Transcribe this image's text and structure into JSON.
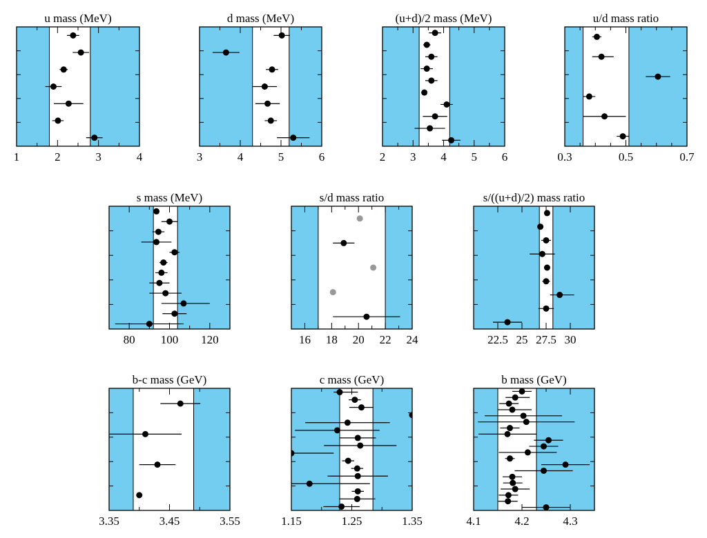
{
  "figure_title": "",
  "colors": {
    "excluded_band": "#72cdf0",
    "allowed_band": "#ffffff",
    "marker_primary": "#000000",
    "marker_secondary": "#999999",
    "frame": "#000000"
  },
  "chart_data": [
    {
      "type": "scatter",
      "title": "u mass (MeV)",
      "xlim": [
        1,
        4
      ],
      "xticks": [
        1,
        2,
        3,
        4
      ],
      "minor_step": 0.5,
      "band": [
        1.8,
        2.8
      ],
      "points": [
        {
          "value": 2.38,
          "err_lo": 0.15,
          "err_hi": 0.15
        },
        {
          "value": 2.57,
          "err_lo": 0.2,
          "err_hi": 0.2
        },
        {
          "value": 2.15,
          "err_lo": 0.1,
          "err_hi": 0.1
        },
        {
          "value": 1.9,
          "err_lo": 0.2,
          "err_hi": 0.2
        },
        {
          "value": 2.27,
          "err_lo": 0.36,
          "err_hi": 0.36
        },
        {
          "value": 2.01,
          "err_lo": 0.14,
          "err_hi": 0.14
        },
        {
          "value": 2.9,
          "err_lo": 0.2,
          "err_hi": 0.2
        }
      ]
    },
    {
      "type": "scatter",
      "title": "d mass (MeV)",
      "xlim": [
        3,
        6
      ],
      "xticks": [
        3,
        4,
        5,
        6
      ],
      "minor_step": 0.5,
      "band": [
        4.3,
        5.2
      ],
      "points": [
        {
          "value": 5.02,
          "err_lo": 0.2,
          "err_hi": 0.2
        },
        {
          "value": 3.65,
          "err_lo": 0.33,
          "err_hi": 0.33
        },
        {
          "value": 4.78,
          "err_lo": 0.15,
          "err_hi": 0.15
        },
        {
          "value": 4.6,
          "err_lo": 0.3,
          "err_hi": 0.3
        },
        {
          "value": 4.67,
          "err_lo": 0.3,
          "err_hi": 0.3
        },
        {
          "value": 4.75,
          "err_lo": 0.15,
          "err_hi": 0.15
        },
        {
          "value": 5.3,
          "err_lo": 0.4,
          "err_hi": 0.4
        }
      ]
    },
    {
      "type": "scatter",
      "title": "(u+d)/2 mass (MeV)",
      "xlim": [
        2,
        6
      ],
      "xticks": [
        2,
        3,
        4,
        5,
        6
      ],
      "minor_step": 0.5,
      "band": [
        3.2,
        4.2
      ],
      "points": [
        {
          "value": 3.72,
          "err_lo": 0.2,
          "err_hi": 0.2
        },
        {
          "value": 3.45,
          "err_lo": 0.12,
          "err_hi": 0.12
        },
        {
          "value": 3.6,
          "err_lo": 0.2,
          "err_hi": 0.2
        },
        {
          "value": 3.45,
          "err_lo": 0.2,
          "err_hi": 0.2
        },
        {
          "value": 3.6,
          "err_lo": 0.2,
          "err_hi": 0.2
        },
        {
          "value": 3.37,
          "err_lo": 0.0,
          "err_hi": 0.0
        },
        {
          "value": 4.1,
          "err_lo": 0.2,
          "err_hi": 0.2
        },
        {
          "value": 3.72,
          "err_lo": 0.4,
          "err_hi": 0.4
        },
        {
          "value": 3.55,
          "err_lo": 0.5,
          "err_hi": 0.5
        },
        {
          "value": 4.25,
          "err_lo": 0.3,
          "err_hi": 0.3
        }
      ]
    },
    {
      "type": "scatter",
      "title": "u/d mass ratio",
      "xlim": [
        0.3,
        0.7
      ],
      "xticks": [
        "0.3",
        "0.5",
        "0.7"
      ],
      "xtick_values": [
        0.3,
        0.5,
        0.7
      ],
      "minor_step": 0.05,
      "band": [
        0.36,
        0.51
      ],
      "points": [
        {
          "value": 0.405,
          "err_lo": 0.015,
          "err_hi": 0.015
        },
        {
          "value": 0.42,
          "err_lo": 0.03,
          "err_hi": 0.04
        },
        {
          "value": 0.605,
          "err_lo": 0.04,
          "err_hi": 0.04
        },
        {
          "value": 0.38,
          "err_lo": 0.02,
          "err_hi": 0.02
        },
        {
          "value": 0.43,
          "err_lo": 0.07,
          "err_hi": 0.07
        },
        {
          "value": 0.49,
          "err_lo": 0.02,
          "err_hi": 0.02
        }
      ]
    },
    {
      "type": "scatter",
      "title": "s mass (MeV)",
      "xlim": [
        70,
        130
      ],
      "xticks": [
        80,
        100,
        120
      ],
      "minor_step": 10,
      "band": [
        92,
        104
      ],
      "points": [
        {
          "value": 93.5,
          "err_lo": 1.5,
          "err_hi": 1.5
        },
        {
          "value": 100,
          "err_lo": 4,
          "err_hi": 4
        },
        {
          "value": 94.5,
          "err_lo": 3,
          "err_hi": 3
        },
        {
          "value": 93.5,
          "err_lo": 7.5,
          "err_hi": 7.5
        },
        {
          "value": 102.5,
          "err_lo": 2.5,
          "err_hi": 2.5
        },
        {
          "value": 97,
          "err_lo": 2,
          "err_hi": 2
        },
        {
          "value": 96,
          "err_lo": 3,
          "err_hi": 3
        },
        {
          "value": 95,
          "err_lo": 5,
          "err_hi": 5
        },
        {
          "value": 98,
          "err_lo": 8,
          "err_hi": 8
        },
        {
          "value": 107,
          "err_lo": 11,
          "err_hi": 13
        },
        {
          "value": 102.5,
          "err_lo": 6,
          "err_hi": 6
        },
        {
          "value": 90,
          "err_lo": 17,
          "err_hi": 17
        }
      ]
    },
    {
      "type": "scatter",
      "title": "s/d mass ratio",
      "xlim": [
        15,
        24
      ],
      "xticks": [
        16,
        18,
        20,
        22,
        24
      ],
      "minor_step": 1,
      "band": [
        17,
        22
      ],
      "points": [
        {
          "value": 20.1,
          "err_lo": 0,
          "err_hi": 0,
          "muted": true
        },
        {
          "value": 18.9,
          "err_lo": 0.8,
          "err_hi": 0.8
        },
        {
          "value": 21.1,
          "err_lo": 0,
          "err_hi": 0,
          "muted": true
        },
        {
          "value": 18.1,
          "err_lo": 0,
          "err_hi": 0,
          "muted": true
        },
        {
          "value": 20.6,
          "err_lo": 2.5,
          "err_hi": 2.5
        }
      ]
    },
    {
      "type": "scatter",
      "title": "s/((u+d)/2) mass ratio",
      "xlim": [
        20,
        32.5
      ],
      "xticks": [
        "22.5",
        "25",
        "27.5",
        "30"
      ],
      "xtick_values": [
        22.5,
        25,
        27.5,
        30
      ],
      "minor_step": 2.5,
      "band": [
        26.8,
        28.2
      ],
      "points": [
        {
          "value": 27.6,
          "err_lo": 0.2,
          "err_hi": 0.2
        },
        {
          "value": 26.9,
          "err_lo": 0.2,
          "err_hi": 0.2
        },
        {
          "value": 27.5,
          "err_lo": 0.5,
          "err_hi": 0.5
        },
        {
          "value": 27.1,
          "err_lo": 1.3,
          "err_hi": 1.3
        },
        {
          "value": 27.6,
          "err_lo": 0.3,
          "err_hi": 0.3
        },
        {
          "value": 27.5,
          "err_lo": 0.4,
          "err_hi": 0.4
        },
        {
          "value": 28.9,
          "err_lo": 1.0,
          "err_hi": 1.5
        },
        {
          "value": 27.5,
          "err_lo": 0.8,
          "err_hi": 0.8
        },
        {
          "value": 23.5,
          "err_lo": 1.5,
          "err_hi": 1.5
        }
      ]
    },
    {
      "type": "scatter",
      "title": "b-c mass (GeV)",
      "xlim": [
        3.35,
        3.55
      ],
      "xticks": [
        "3.35",
        "3.45",
        "3.55"
      ],
      "xtick_values": [
        3.35,
        3.45,
        3.55
      ],
      "minor_step": 0.05,
      "band": [
        3.39,
        3.49
      ],
      "points": [
        {
          "value": 3.468,
          "err_lo": 0.033,
          "err_hi": 0.033
        },
        {
          "value": 3.41,
          "err_lo": 0.06,
          "err_hi": 0.06
        },
        {
          "value": 3.43,
          "err_lo": 0.03,
          "err_hi": 0.03
        },
        {
          "value": 3.4,
          "err_lo": 0.005,
          "err_hi": 0.005
        }
      ]
    },
    {
      "type": "scatter",
      "title": "c mass (GeV)",
      "xlim": [
        1.15,
        1.35
      ],
      "xticks": [
        "1.15",
        "1.25",
        "1.35"
      ],
      "xtick_values": [
        1.15,
        1.25,
        1.35
      ],
      "minor_step": 0.05,
      "band": [
        1.23,
        1.285
      ],
      "points": [
        {
          "value": 1.23,
          "err_lo": 0.01,
          "err_hi": 0.03
        },
        {
          "value": 1.255,
          "err_lo": 0.01,
          "err_hi": 0.01
        },
        {
          "value": 1.266,
          "err_lo": 0.02,
          "err_hi": 0.02
        },
        {
          "value": 1.35,
          "err_lo": 0.0,
          "err_hi": 0.0
        },
        {
          "value": 1.243,
          "err_lo": 0.07,
          "err_hi": 0.07
        },
        {
          "value": 1.226,
          "err_lo": 0.07,
          "err_hi": 0.07
        },
        {
          "value": 1.26,
          "err_lo": 0.03,
          "err_hi": 0.03
        },
        {
          "value": 1.264,
          "err_lo": 0.06,
          "err_hi": 0.06
        },
        {
          "value": 1.15,
          "err_lo": 0.0,
          "err_hi": 0.07
        },
        {
          "value": 1.244,
          "err_lo": 0.01,
          "err_hi": 0.01
        },
        {
          "value": 1.259,
          "err_lo": 0.01,
          "err_hi": 0.01
        },
        {
          "value": 1.26,
          "err_lo": 0.05,
          "err_hi": 0.05
        },
        {
          "value": 1.18,
          "err_lo": 0.03,
          "err_hi": 0.1
        },
        {
          "value": 1.26,
          "err_lo": 0.01,
          "err_hi": 0.01
        },
        {
          "value": 1.259,
          "err_lo": 0.03,
          "err_hi": 0.03
        },
        {
          "value": 1.233,
          "err_lo": 0.03,
          "err_hi": 0.03
        }
      ]
    },
    {
      "type": "scatter",
      "title": "b mass (GeV)",
      "xlim": [
        4.1,
        4.35
      ],
      "xticks": [
        "4.1",
        "4.2",
        "4.3"
      ],
      "xtick_values": [
        4.1,
        4.2,
        4.3
      ],
      "minor_step": 0.05,
      "band": [
        4.15,
        4.23
      ],
      "points": [
        {
          "value": 4.2,
          "err_lo": 0.02,
          "err_hi": 0.02
        },
        {
          "value": 4.186,
          "err_lo": 0.02,
          "err_hi": 0.03
        },
        {
          "value": 4.173,
          "err_lo": 0.02,
          "err_hi": 0.02
        },
        {
          "value": 4.18,
          "err_lo": 0.03,
          "err_hi": 0.04
        },
        {
          "value": 4.203,
          "err_lo": 0.08,
          "err_hi": 0.08
        },
        {
          "value": 4.209,
          "err_lo": 0.1,
          "err_hi": 0.1
        },
        {
          "value": 4.175,
          "err_lo": 0.02,
          "err_hi": 0.02
        },
        {
          "value": 4.17,
          "err_lo": 0.06,
          "err_hi": 0.06
        },
        {
          "value": 4.255,
          "err_lo": 0.03,
          "err_hi": 0.03
        },
        {
          "value": 4.245,
          "err_lo": 0.03,
          "err_hi": 0.03
        },
        {
          "value": 4.212,
          "err_lo": 0.06,
          "err_hi": 0.06
        },
        {
          "value": 4.175,
          "err_lo": 0.01,
          "err_hi": 0.01
        },
        {
          "value": 4.29,
          "err_lo": 0.05,
          "err_hi": 0.05
        },
        {
          "value": 4.245,
          "err_lo": 0.06,
          "err_hi": 0.06
        },
        {
          "value": 4.18,
          "err_lo": 0.02,
          "err_hi": 0.02
        },
        {
          "value": 4.181,
          "err_lo": 0.02,
          "err_hi": 0.02
        },
        {
          "value": 4.186,
          "err_lo": 0.03,
          "err_hi": 0.03
        },
        {
          "value": 4.172,
          "err_lo": 0.02,
          "err_hi": 0.02
        },
        {
          "value": 4.171,
          "err_lo": 0.02,
          "err_hi": 0.02
        },
        {
          "value": 4.25,
          "err_lo": 0.05,
          "err_hi": 0.05
        }
      ]
    }
  ]
}
